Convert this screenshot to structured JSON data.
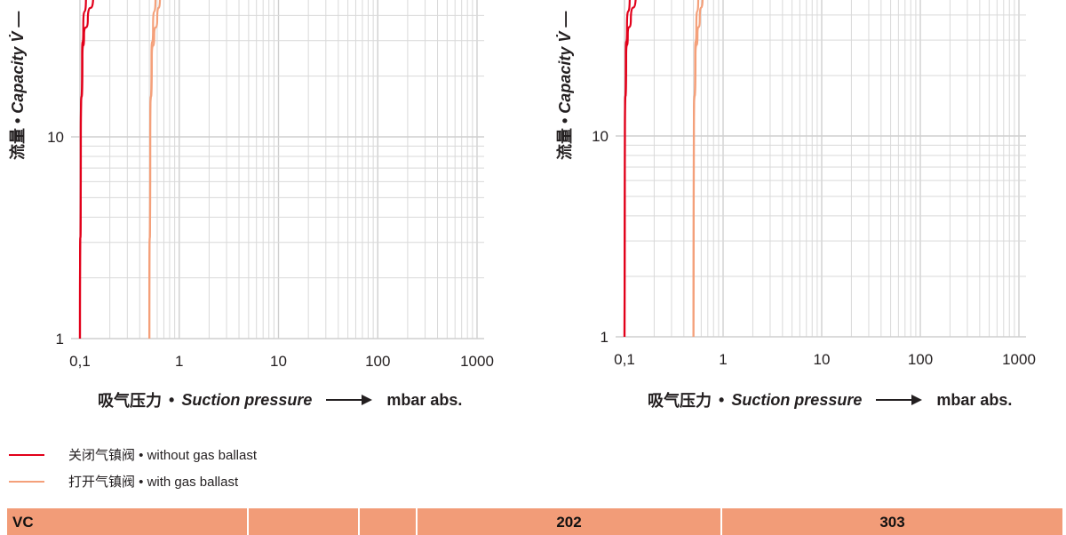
{
  "chart_data": [
    {
      "type": "line",
      "xscale": "log",
      "yscale": "log",
      "xlim": [
        0.1,
        1000
      ],
      "ylim": [
        1,
        50
      ],
      "grid": true,
      "xticks": [
        "0,1",
        "1",
        "10",
        "100",
        "1000"
      ],
      "yticks": [
        "1",
        "10"
      ],
      "xlabel": {
        "cn": "吸气压力",
        "en": "Suction pressure",
        "unit": "mbar abs."
      },
      "ylabel": {
        "cn": "流量",
        "en": "Capacity V̇"
      },
      "series": [
        {
          "group": "without",
          "points": [
            [
              0.1,
              1
            ],
            [
              0.102,
              10
            ],
            [
              0.105,
              25
            ],
            [
              0.108,
              35
            ],
            [
              0.115,
              50
            ]
          ]
        },
        {
          "group": "without",
          "points": [
            [
              0.1,
              1
            ],
            [
              0.102,
              10
            ],
            [
              0.106,
              25
            ],
            [
              0.11,
              32
            ],
            [
              0.12,
              38
            ],
            [
              0.136,
              50
            ]
          ]
        },
        {
          "group": "with",
          "points": [
            [
              0.5,
              1
            ],
            [
              0.51,
              10
            ],
            [
              0.525,
              25
            ],
            [
              0.545,
              35
            ],
            [
              0.577,
              50
            ]
          ]
        },
        {
          "group": "with",
          "points": [
            [
              0.5,
              1
            ],
            [
              0.51,
              10
            ],
            [
              0.53,
              25
            ],
            [
              0.56,
              32
            ],
            [
              0.6,
              38
            ],
            [
              0.64,
              50
            ]
          ]
        }
      ]
    },
    {
      "type": "line",
      "xscale": "log",
      "yscale": "log",
      "xlim": [
        0.1,
        1000
      ],
      "ylim": [
        1,
        50
      ],
      "grid": true,
      "xticks": [
        "0,1",
        "1",
        "10",
        "100",
        "1000"
      ],
      "yticks": [
        "1",
        "10"
      ],
      "xlabel": {
        "cn": "吸气压力",
        "en": "Suction pressure",
        "unit": "mbar abs."
      },
      "ylabel": {
        "cn": "流量",
        "en": "Capacity V̇"
      },
      "series": [
        {
          "group": "without",
          "points": [
            [
              0.1,
              1
            ],
            [
              0.101,
              10
            ],
            [
              0.103,
              25
            ],
            [
              0.106,
              35
            ],
            [
              0.113,
              50
            ]
          ]
        },
        {
          "group": "without",
          "points": [
            [
              0.1,
              1
            ],
            [
              0.101,
              10
            ],
            [
              0.104,
              25
            ],
            [
              0.108,
              32
            ],
            [
              0.116,
              38
            ],
            [
              0.13,
              50
            ]
          ]
        },
        {
          "group": "with",
          "points": [
            [
              0.5,
              1
            ],
            [
              0.505,
              10
            ],
            [
              0.52,
              25
            ],
            [
              0.535,
              35
            ],
            [
              0.56,
              50
            ]
          ]
        },
        {
          "group": "with",
          "points": [
            [
              0.5,
              1
            ],
            [
              0.505,
              10
            ],
            [
              0.525,
              25
            ],
            [
              0.55,
              32
            ],
            [
              0.58,
              38
            ],
            [
              0.62,
              50
            ]
          ]
        }
      ]
    }
  ],
  "colors": {
    "without": "#e2001a",
    "with": "#f4a07a",
    "grid": "#d9d9d9",
    "table_header": "#f29c78"
  },
  "legend": [
    {
      "key": "without",
      "label": "关闭气镇阀 • without gas ballast"
    },
    {
      "key": "with",
      "label": "打开气镇阀 • with gas ballast"
    }
  ],
  "table": {
    "headers": [
      "VC",
      "",
      "",
      "202",
      "303"
    ]
  }
}
